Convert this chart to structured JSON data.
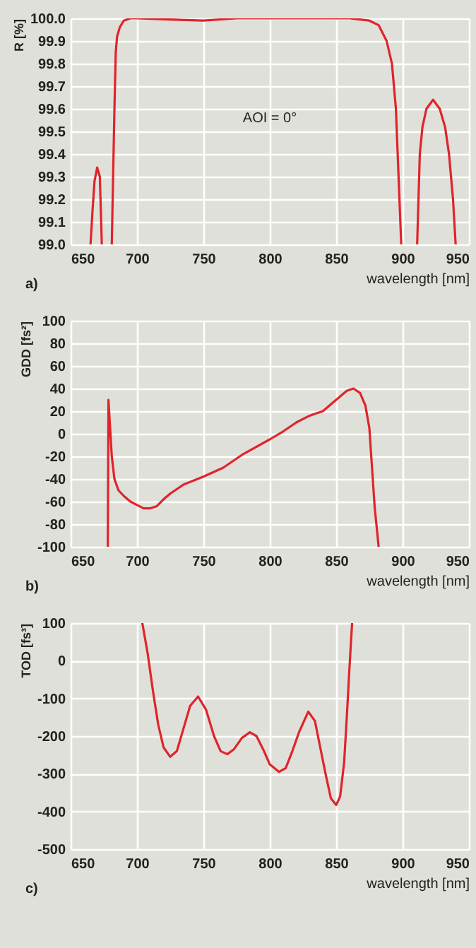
{
  "chart_data": [
    {
      "type": "line",
      "xlabel": "wavelength [nm]",
      "ylabel": "R [%]",
      "annotations": [
        "a)",
        "AOI = 0°"
      ],
      "x": [
        665,
        666.5,
        668,
        670,
        672,
        673.5,
        677,
        681,
        682,
        683,
        684,
        685,
        687,
        690,
        695,
        700,
        725,
        750,
        775,
        800,
        830,
        860,
        875,
        882,
        888,
        892,
        895,
        897,
        899,
        905,
        911,
        913,
        915,
        918,
        923,
        928,
        932,
        935,
        938,
        940
      ],
      "series": [
        {
          "color": "#e0242a",
          "values": [
            99.0,
            99.15,
            99.28,
            99.34,
            99.3,
            99.0,
            null,
            99.0,
            99.3,
            99.6,
            99.85,
            99.92,
            99.96,
            99.99,
            100.0,
            100.0,
            99.995,
            99.99,
            100.0,
            100.0,
            100.0,
            100.0,
            99.99,
            99.97,
            99.9,
            99.8,
            99.6,
            99.3,
            99.0,
            null,
            99.0,
            99.4,
            99.52,
            99.6,
            99.64,
            99.6,
            99.52,
            99.4,
            99.2,
            99.0
          ]
        }
      ],
      "xlim": [
        650,
        950
      ],
      "xticks": [
        650,
        700,
        750,
        800,
        850,
        900,
        950
      ],
      "ylim": [
        99.0,
        100.0
      ],
      "yticks": [
        {
          "value": 99.0,
          "label": "99.0"
        },
        99.1,
        99.2,
        99.3,
        99.4,
        99.5,
        99.6,
        99.7,
        99.8,
        99.9,
        {
          "value": 100.0,
          "label": "100.0"
        }
      ],
      "grid": true
    },
    {
      "type": "line",
      "xlabel": "wavelength [nm]",
      "ylabel": "GDD [fs²]",
      "annotations": [
        "b)"
      ],
      "x": [
        678,
        678.5,
        679.5,
        681,
        683,
        686,
        690,
        695,
        700,
        705,
        710,
        715,
        720,
        725,
        735,
        750,
        765,
        780,
        800,
        810,
        820,
        830,
        840,
        850,
        858,
        863,
        868,
        872,
        875,
        877,
        879,
        882
      ],
      "series": [
        {
          "color": "#e0242a",
          "values": [
            -100,
            30,
            10,
            -20,
            -40,
            -50,
            -55,
            -60,
            -63,
            -66,
            -66,
            -64,
            -58,
            -53,
            -45,
            -38,
            -30,
            -18,
            -5,
            2,
            10,
            16,
            20,
            30,
            38,
            40,
            36,
            25,
            5,
            -30,
            -65,
            -100
          ]
        }
      ],
      "xlim": [
        650,
        950
      ],
      "xticks": [
        650,
        700,
        750,
        800,
        850,
        900,
        950
      ],
      "ylim": [
        -100,
        100
      ],
      "yticks": [
        -100,
        -80,
        -60,
        -40,
        -20,
        0,
        20,
        40,
        60,
        80,
        100
      ],
      "grid": true
    },
    {
      "type": "line",
      "xlabel": "wavelength [nm]",
      "ylabel": "TOD [fs³]",
      "annotations": [
        "c)"
      ],
      "x": [
        704,
        708,
        712,
        716,
        720,
        725,
        730,
        735,
        740,
        746,
        752,
        758,
        763,
        768,
        773,
        779,
        785,
        790,
        795,
        800,
        807,
        812,
        817,
        822,
        829,
        834,
        838,
        842,
        846,
        850,
        853,
        856,
        858,
        860,
        862
      ],
      "series": [
        {
          "color": "#e0242a",
          "values": [
            100,
            20,
            -80,
            -170,
            -230,
            -255,
            -240,
            -180,
            -120,
            -95,
            -130,
            -200,
            -240,
            -248,
            -235,
            -205,
            -190,
            -200,
            -235,
            -275,
            -295,
            -285,
            -240,
            -190,
            -135,
            -160,
            -230,
            -300,
            -365,
            -383,
            -360,
            -270,
            -150,
            -20,
            100
          ]
        }
      ],
      "xlim": [
        650,
        950
      ],
      "xticks": [
        650,
        700,
        750,
        800,
        850,
        900,
        950
      ],
      "ylim": [
        -500,
        100
      ],
      "yticks": [
        -500,
        -400,
        -300,
        -200,
        -100,
        0,
        100
      ],
      "grid": true
    }
  ]
}
